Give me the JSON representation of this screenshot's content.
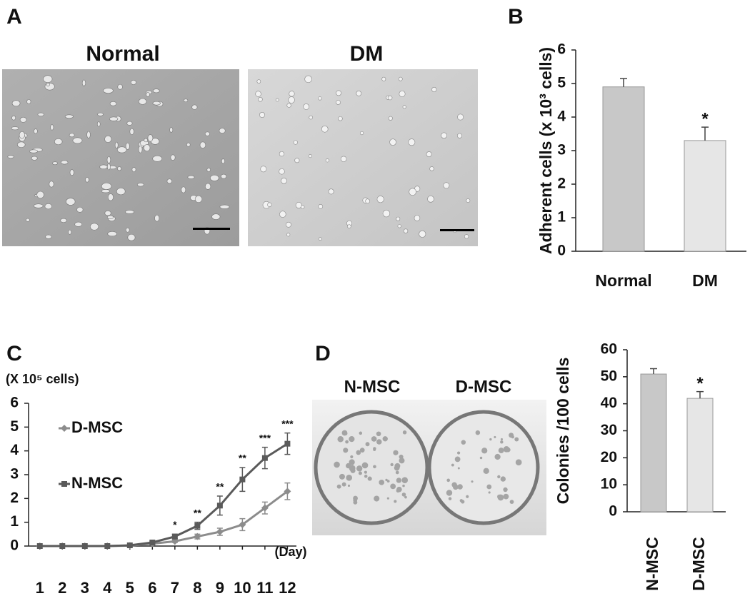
{
  "figure": {
    "panel_labels": [
      "A",
      "B",
      "C",
      "D"
    ],
    "image_labels": [
      "Normal",
      "DM"
    ],
    "dish_labels": [
      "N-MSC",
      "D-MSC"
    ]
  },
  "chart_data": [
    {
      "type": "bar",
      "y_label": "Adherent cells (x 10³ cells)",
      "categories": [
        "Normal",
        "DM"
      ],
      "values": [
        4.9,
        3.3
      ],
      "errors": [
        0.25,
        0.4
      ],
      "colors": [
        "#c8c8c8",
        "#e6e6e6"
      ],
      "annotations": [
        null,
        "*"
      ],
      "ylim": [
        0,
        6
      ],
      "yticks": [
        0,
        1,
        2,
        3,
        4,
        5,
        6
      ]
    },
    {
      "type": "line",
      "y_label": "(X 10⁵ cells)",
      "x_label": "(Day)",
      "x": [
        1,
        2,
        3,
        4,
        5,
        6,
        7,
        8,
        9,
        10,
        11,
        12
      ],
      "series": [
        {
          "name": "D-MSC",
          "color": "#8c8c8c",
          "marker": "diamond",
          "values": [
            0,
            0,
            0,
            0,
            0.02,
            0.1,
            0.2,
            0.4,
            0.6,
            0.9,
            1.6,
            2.3
          ],
          "errors": [
            0,
            0,
            0,
            0,
            0.02,
            0.05,
            0.05,
            0.1,
            0.15,
            0.25,
            0.25,
            0.35
          ]
        },
        {
          "name": "N-MSC",
          "color": "#5a5a5a",
          "marker": "square",
          "values": [
            0,
            0,
            0,
            0,
            0.03,
            0.15,
            0.4,
            0.85,
            1.7,
            2.8,
            3.7,
            4.3
          ],
          "errors": [
            0,
            0,
            0,
            0,
            0.02,
            0.05,
            0.1,
            0.15,
            0.4,
            0.5,
            0.45,
            0.45
          ]
        }
      ],
      "significance": [
        null,
        null,
        null,
        null,
        null,
        null,
        "*",
        "**",
        "**",
        "**",
        "***",
        "***"
      ],
      "xlim": [
        0.5,
        12.4
      ],
      "xticks": [
        1,
        2,
        3,
        4,
        5,
        6,
        7,
        8,
        9,
        10,
        11,
        12
      ],
      "ylim": [
        0,
        6
      ],
      "yticks": [
        0,
        1,
        2,
        3,
        4,
        5,
        6
      ]
    },
    {
      "type": "bar",
      "y_label": "Colonies /100 cells",
      "categories": [
        "N-MSC",
        "D-MSC"
      ],
      "values": [
        51,
        42
      ],
      "errors": [
        2,
        2.5
      ],
      "colors": [
        "#c8c8c8",
        "#e6e6e6"
      ],
      "annotations": [
        null,
        "*"
      ],
      "ylim": [
        0,
        60
      ],
      "yticks": [
        0,
        10,
        20,
        30,
        40,
        50,
        60
      ]
    }
  ]
}
